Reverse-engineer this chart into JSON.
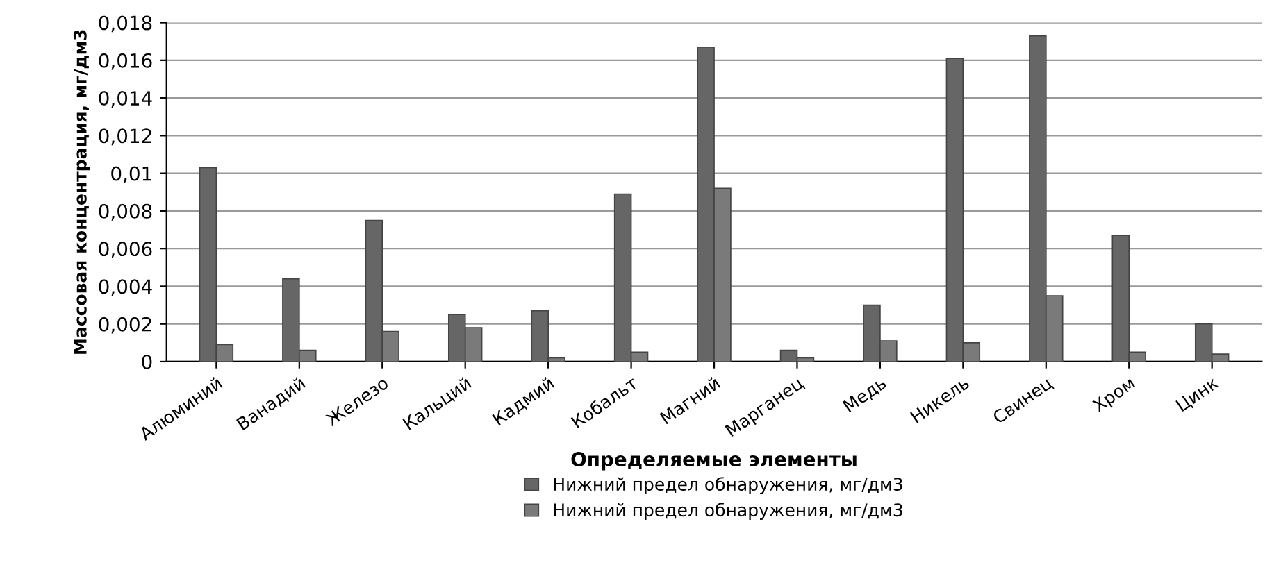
{
  "chart_data": {
    "type": "bar",
    "xlabel": "Определяемые элементы",
    "ylabel": "Массовая концентрация, мг/дм3",
    "categories": [
      "Алюминий",
      "Ванадий",
      "Железо",
      "Кальций",
      "Кадмий",
      "Кобальт",
      "Магний",
      "Марганец",
      "Медь",
      "Никель",
      "Свинец",
      "Хром",
      "Цинк"
    ],
    "series": [
      {
        "name": "Нижний предел обнаружения, мг/дм3",
        "color": "#666666",
        "values": [
          0.0103,
          0.0044,
          0.0075,
          0.0025,
          0.0027,
          0.0089,
          0.0167,
          0.0006,
          0.003,
          0.0161,
          0.0173,
          0.0067,
          0.002
        ]
      },
      {
        "name": "Нижний предел обнаружения, мг/дм3",
        "color": "#7a7a7a",
        "values": [
          0.0009,
          0.0006,
          0.0016,
          0.0018,
          0.0002,
          0.0005,
          0.0092,
          0.0002,
          0.0011,
          0.001,
          0.0035,
          0.0005,
          0.0004
        ]
      }
    ],
    "ylim": [
      0,
      0.018
    ],
    "yticks": [
      0,
      {
        "value": 0.002,
        "label": "0,002"
      },
      {
        "value": 0.004,
        "label": "0,004"
      },
      {
        "value": 0.006,
        "label": "0,006"
      },
      {
        "value": 0.008,
        "label": "0,008"
      },
      {
        "value": 0.01,
        "label": "0,01"
      },
      {
        "value": 0.012,
        "label": "0,012"
      },
      {
        "value": 0.014,
        "label": "0,014"
      },
      {
        "value": 0.016,
        "label": "0,016"
      },
      {
        "value": 0.018,
        "label": "0,018"
      }
    ],
    "grid": "y",
    "legend": "bottom"
  }
}
